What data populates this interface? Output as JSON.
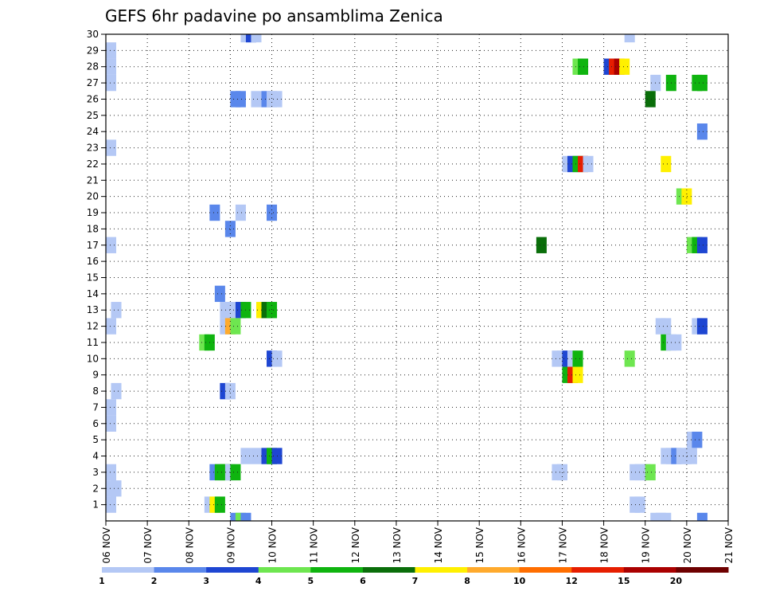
{
  "chart_data": {
    "type": "heatmap",
    "title": "GEFS 6hr padavine po ansamblima Zenica",
    "x_tick_labels": [
      "06 NOV",
      "07 NOV",
      "08 NOV",
      "09 NOV",
      "10 NOV",
      "11 NOV",
      "12 NOV",
      "13 NOV",
      "14 NOV",
      "15 NOV",
      "16 NOV",
      "17 NOV",
      "18 NOV",
      "19 NOV",
      "20 NOV",
      "21 NOV"
    ],
    "y_tick_labels": [
      "1",
      "2",
      "3",
      "4",
      "5",
      "6",
      "7",
      "8",
      "9",
      "10",
      "11",
      "12",
      "13",
      "14",
      "15",
      "16",
      "17",
      "18",
      "19",
      "20",
      "21",
      "22",
      "23",
      "24",
      "25",
      "26",
      "27",
      "28",
      "29",
      "30"
    ],
    "y_range": [
      0,
      30
    ],
    "x_range_days": [
      0,
      15
    ],
    "time_step_hours": 6,
    "grid": "dotted",
    "colorbar": {
      "tick_labels": [
        "1",
        "2",
        "3",
        "4",
        "5",
        "6",
        "7",
        "8",
        "10",
        "12",
        "15",
        "20"
      ],
      "colors": [
        "#b4c8f5",
        "#5a87eb",
        "#1e46d2",
        "#6ee650",
        "#0fb40f",
        "#0a6e0a",
        "#fff000",
        "#ffaa2d",
        "#ff6e00",
        "#e61e00",
        "#aa0000",
        "#6e0000"
      ]
    },
    "cells": [
      [
        30,
        27,
        0
      ],
      [
        30,
        28,
        2
      ],
      [
        30,
        29,
        0
      ],
      [
        30,
        101,
        0
      ],
      [
        29,
        1,
        0
      ],
      [
        28,
        1,
        0
      ],
      [
        28,
        91,
        3
      ],
      [
        28,
        92,
        4
      ],
      [
        28,
        97,
        2
      ],
      [
        28,
        98,
        9
      ],
      [
        28,
        99,
        10
      ],
      [
        28,
        100,
        6
      ],
      [
        27,
        1,
        0
      ],
      [
        27,
        106,
        0
      ],
      [
        27,
        109,
        4
      ],
      [
        27,
        114,
        4
      ],
      [
        27,
        115,
        4
      ],
      [
        26,
        25,
        1
      ],
      [
        26,
        26,
        1
      ],
      [
        26,
        29,
        0
      ],
      [
        26,
        31,
        1
      ],
      [
        26,
        32,
        0
      ],
      [
        26,
        33,
        0
      ],
      [
        26,
        105,
        5
      ],
      [
        24,
        115,
        1
      ],
      [
        23,
        1,
        0
      ],
      [
        22,
        89,
        0
      ],
      [
        22,
        90,
        2
      ],
      [
        22,
        91,
        4
      ],
      [
        22,
        92,
        9
      ],
      [
        22,
        93,
        0
      ],
      [
        22,
        108,
        6
      ],
      [
        20,
        111,
        3
      ],
      [
        20,
        112,
        6
      ],
      [
        19,
        21,
        1
      ],
      [
        19,
        26,
        0
      ],
      [
        19,
        32,
        1
      ],
      [
        18,
        24,
        1
      ],
      [
        17,
        1,
        0
      ],
      [
        17,
        84,
        5
      ],
      [
        17,
        113,
        3
      ],
      [
        17,
        114,
        4
      ],
      [
        17,
        115,
        2
      ],
      [
        14,
        22,
        1
      ],
      [
        13,
        2,
        0
      ],
      [
        13,
        23,
        0
      ],
      [
        13,
        24,
        0
      ],
      [
        13,
        26,
        2
      ],
      [
        13,
        27,
        4
      ],
      [
        13,
        30,
        6
      ],
      [
        13,
        31,
        5
      ],
      [
        13,
        32,
        4
      ],
      [
        12,
        1,
        0
      ],
      [
        12,
        23,
        0
      ],
      [
        12,
        24,
        7
      ],
      [
        12,
        25,
        3
      ],
      [
        12,
        107,
        0
      ],
      [
        12,
        108,
        0
      ],
      [
        12,
        114,
        0
      ],
      [
        12,
        115,
        2
      ],
      [
        11,
        19,
        3
      ],
      [
        11,
        20,
        4
      ],
      [
        11,
        108,
        4
      ],
      [
        11,
        109,
        0
      ],
      [
        11,
        110,
        0
      ],
      [
        10,
        32,
        2
      ],
      [
        10,
        33,
        0
      ],
      [
        10,
        87,
        0
      ],
      [
        10,
        88,
        0
      ],
      [
        10,
        89,
        2
      ],
      [
        10,
        90,
        0
      ],
      [
        10,
        91,
        4
      ],
      [
        10,
        101,
        3
      ],
      [
        9,
        89,
        4
      ],
      [
        9,
        90,
        9
      ],
      [
        9,
        91,
        6
      ],
      [
        8,
        2,
        0
      ],
      [
        8,
        23,
        2
      ],
      [
        8,
        24,
        0
      ],
      [
        7,
        1,
        0
      ],
      [
        6,
        1,
        0
      ],
      [
        5,
        113,
        0
      ],
      [
        5,
        114,
        1
      ],
      [
        4,
        27,
        0
      ],
      [
        4,
        29,
        0
      ],
      [
        4,
        31,
        2
      ],
      [
        4,
        32,
        4
      ],
      [
        4,
        33,
        2
      ],
      [
        4,
        108,
        0
      ],
      [
        4,
        109,
        0
      ],
      [
        4,
        110,
        1
      ],
      [
        4,
        111,
        0
      ],
      [
        4,
        112,
        0
      ],
      [
        4,
        113,
        0
      ],
      [
        3,
        1,
        0
      ],
      [
        3,
        21,
        1
      ],
      [
        3,
        22,
        4
      ],
      [
        3,
        23,
        4
      ],
      [
        3,
        24,
        0
      ],
      [
        3,
        25,
        4
      ],
      [
        3,
        87,
        0
      ],
      [
        3,
        88,
        0
      ],
      [
        3,
        102,
        0
      ],
      [
        3,
        103,
        0
      ],
      [
        3,
        104,
        0
      ],
      [
        3,
        105,
        3
      ],
      [
        2,
        1,
        0
      ],
      [
        2,
        2,
        0
      ],
      [
        1,
        1,
        0
      ],
      [
        1,
        20,
        0
      ],
      [
        1,
        21,
        6
      ],
      [
        1,
        22,
        4
      ],
      [
        1,
        102,
        0
      ],
      [
        1,
        103,
        0
      ],
      [
        0,
        25,
        1
      ],
      [
        0,
        26,
        3
      ],
      [
        0,
        27,
        1
      ],
      [
        0,
        106,
        0
      ],
      [
        0,
        107,
        0
      ],
      [
        0,
        108,
        0
      ],
      [
        0,
        115,
        1
      ]
    ]
  }
}
